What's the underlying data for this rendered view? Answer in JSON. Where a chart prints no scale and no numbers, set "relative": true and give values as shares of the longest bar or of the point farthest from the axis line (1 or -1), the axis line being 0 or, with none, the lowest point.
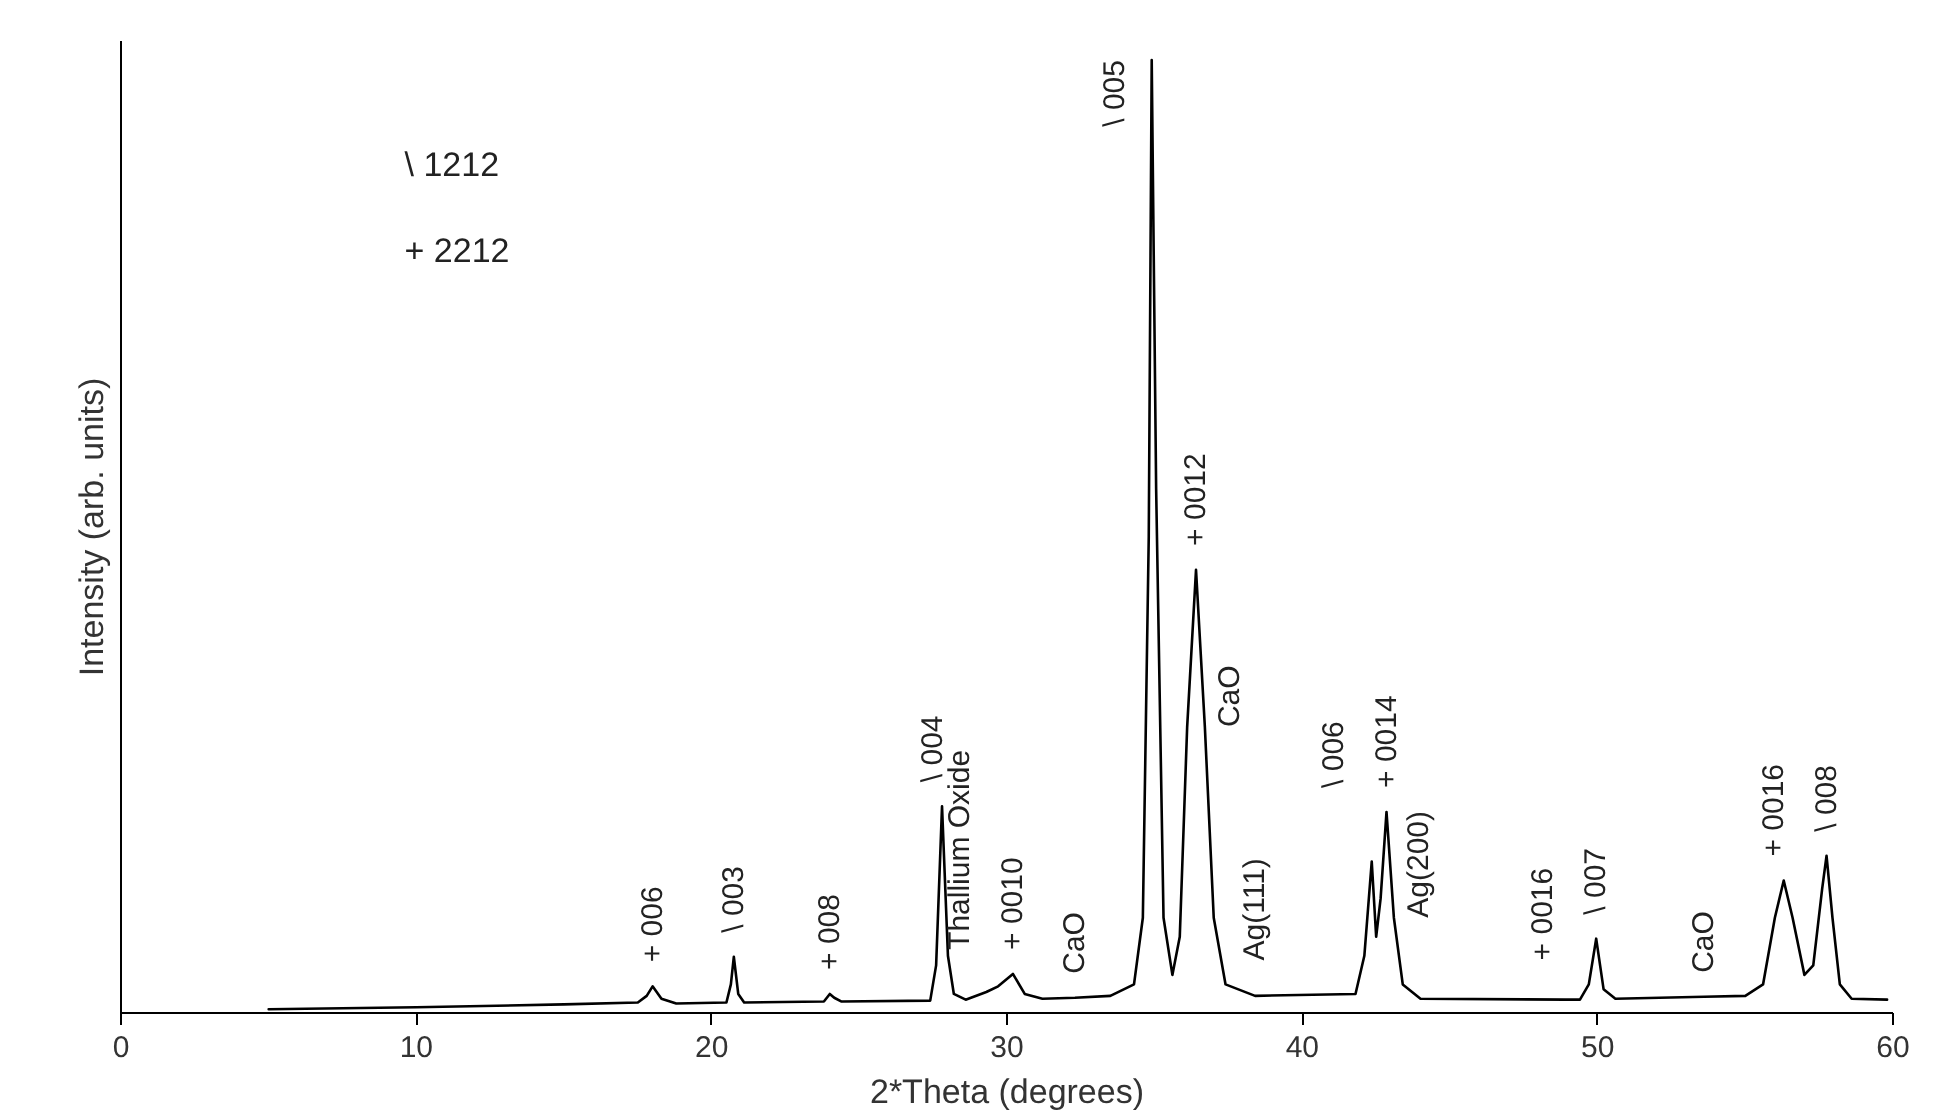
{
  "chart_data": {
    "type": "line",
    "relative": true,
    "xlabel": "2*Theta (degrees)",
    "ylabel": "Intensity (arb. units)",
    "xlim": [
      0,
      60
    ],
    "xticks": [
      0,
      10,
      20,
      30,
      40,
      50,
      60
    ],
    "tick_labels": "x",
    "grid": false,
    "marker": "none",
    "line_style": "solid",
    "series": [
      {
        "color": "#000000",
        "x": [
          5,
          10,
          15,
          17.5,
          17.8,
          18.0,
          18.3,
          18.8,
          20.5,
          20.65,
          20.75,
          20.9,
          21.1,
          23.8,
          24.0,
          24.15,
          24.4,
          27.4,
          27.6,
          27.8,
          28.0,
          28.2,
          28.6,
          29.3,
          29.7,
          30.2,
          30.6,
          31.2,
          32.3,
          33.5,
          34.3,
          34.6,
          34.8,
          34.9,
          35.05,
          35.3,
          35.6,
          35.85,
          36.1,
          36.4,
          36.7,
          37.0,
          37.4,
          38.4,
          41.8,
          42.1,
          42.35,
          42.5,
          42.65,
          42.85,
          43.1,
          43.4,
          44,
          48.9,
          49.4,
          49.7,
          49.95,
          50.2,
          50.6,
          53.6,
          55,
          55.6,
          56.0,
          56.3,
          56.6,
          57.0,
          57.3,
          57.6,
          57.75,
          57.95,
          58.2,
          58.6,
          59.8
        ],
        "values": [
          0.004,
          0.006,
          0.009,
          0.011,
          0.018,
          0.028,
          0.015,
          0.01,
          0.011,
          0.03,
          0.059,
          0.02,
          0.011,
          0.012,
          0.02,
          0.016,
          0.012,
          0.013,
          0.05,
          0.217,
          0.06,
          0.02,
          0.014,
          0.022,
          0.028,
          0.041,
          0.02,
          0.015,
          0.016,
          0.018,
          0.03,
          0.1,
          0.5,
          1.0,
          0.55,
          0.1,
          0.04,
          0.08,
          0.3,
          0.465,
          0.3,
          0.1,
          0.03,
          0.018,
          0.02,
          0.06,
          0.159,
          0.08,
          0.12,
          0.211,
          0.1,
          0.03,
          0.015,
          0.014,
          0.014,
          0.03,
          0.078,
          0.025,
          0.015,
          0.017,
          0.018,
          0.03,
          0.1,
          0.139,
          0.1,
          0.04,
          0.05,
          0.13,
          0.165,
          0.1,
          0.03,
          0.015,
          0.014
        ]
      }
    ],
    "annotations": [
      "\\ 1212",
      "+ 2212",
      {
        "text": "+ 006",
        "x": 18.0,
        "y": 0.028
      },
      {
        "text": "\\ 003",
        "x": 20.75,
        "y": 0.059
      },
      {
        "text": "+ 008",
        "x": 24.0,
        "y": 0.02
      },
      {
        "text": "\\ 004",
        "x": 27.8,
        "y": 0.217
      },
      {
        "text": "Thallium Oxide",
        "x": 29.3,
        "y": 0.022
      },
      {
        "text": "+ 0010",
        "x": 30.2,
        "y": 0.041
      },
      {
        "text": "CaO",
        "x": 32.3,
        "y": 0.016
      },
      {
        "text": "\\ 005",
        "x": 34.9,
        "y": 1.0
      },
      {
        "text": "+ 0012",
        "x": 36.4,
        "y": 0.465
      },
      {
        "text": "CaO",
        "x": 36.7,
        "y": 0.3
      },
      {
        "text": "Ag(111)",
        "x": 38.4,
        "y": 0.018
      },
      {
        "text": "\\ 006",
        "x": 42.35,
        "y": 0.159
      },
      {
        "text": "+ 0014",
        "x": 42.85,
        "y": 0.211
      },
      {
        "text": "Ag(200)",
        "x": 43.1,
        "y": 0.1
      },
      {
        "text": "+ 0016",
        "x": 48.9,
        "y": 0.014
      },
      {
        "text": "\\ 007",
        "x": 49.95,
        "y": 0.078
      },
      {
        "text": "CaO",
        "x": 53.6,
        "y": 0.017
      },
      {
        "text": "+ 0016",
        "x": 56.3,
        "y": 0.139
      },
      {
        "text": "\\ 008",
        "x": 57.75,
        "y": 0.165
      }
    ]
  }
}
